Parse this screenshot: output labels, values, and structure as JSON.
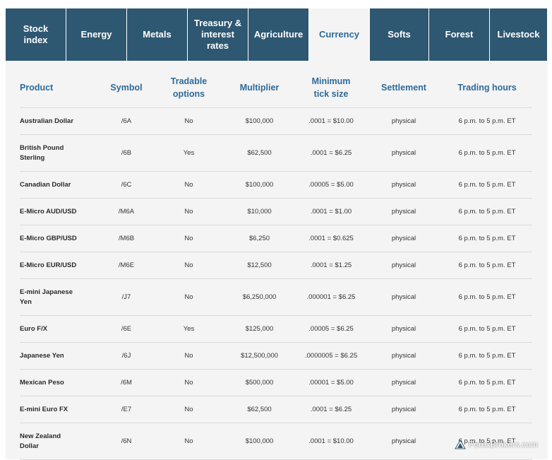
{
  "tabs": [
    {
      "label": "Stock\nindex",
      "active": false
    },
    {
      "label": "Energy",
      "active": false
    },
    {
      "label": "Metals",
      "active": false
    },
    {
      "label": "Treasury &\ninterest\nrates",
      "active": false
    },
    {
      "label": "Agriculture",
      "active": false
    },
    {
      "label": "Currency",
      "active": true
    },
    {
      "label": "Softs",
      "active": false
    },
    {
      "label": "Forest",
      "active": false
    },
    {
      "label": "Livestock",
      "active": false
    }
  ],
  "table": {
    "headers": [
      "Product",
      "Symbol",
      "Tradable\noptions",
      "Multiplier",
      "Minimum\ntick size",
      "Settlement",
      "Trading hours"
    ],
    "rows": [
      [
        "Australian Dollar",
        "/6A",
        "No",
        "$100,000",
        ".0001 = $10.00",
        "physical",
        "6 p.m. to 5 p.m. ET"
      ],
      [
        "British Pound\nSterling",
        "/6B",
        "Yes",
        "$62,500",
        ".0001 = $6.25",
        "physical",
        "6 p.m. to 5 p.m. ET"
      ],
      [
        "Canadian Dollar",
        "/6C",
        "No",
        "$100,000",
        ".00005 = $5.00",
        "physical",
        "6 p.m. to 5 p.m. ET"
      ],
      [
        "E-Micro AUD/USD",
        "/M6A",
        "No",
        "$10,000",
        ".0001 = $1.00",
        "physical",
        "6 p.m. to 5 p.m. ET"
      ],
      [
        "E-Micro GBP/USD",
        "/M6B",
        "No",
        "$6,250",
        ".0001 = $0.625",
        "physical",
        "6 p.m. to 5 p.m. ET"
      ],
      [
        "E-Micro EUR/USD",
        "/M6E",
        "No",
        "$12,500",
        ".0001 = $1.25",
        "physical",
        "6 p.m. to 5 p.m. ET"
      ],
      [
        "E-mini Japanese\nYen",
        "/J7",
        "No",
        "$6,250,000",
        ".000001 = $6.25",
        "physical",
        "6 p.m. to 5 p.m. ET"
      ],
      [
        "Euro F/X",
        "/6E",
        "Yes",
        "$125,000",
        ".00005 = $6.25",
        "physical",
        "6 p.m. to 5 p.m. ET"
      ],
      [
        "Japanese Yen",
        "/6J",
        "No",
        "$12,500,000",
        ".0000005 = $6.25",
        "physical",
        "6 p.m. to 5 p.m. ET"
      ],
      [
        "Mexican Peso",
        "/6M",
        "No",
        "$500,000",
        ".00001 = $5.00",
        "physical",
        "6 p.m. to 5 p.m. ET"
      ],
      [
        "E-mini Euro FX",
        "/E7",
        "No",
        "$62,500",
        ".0001 = $6.25",
        "physical",
        "6 p.m. to 5 p.m. ET"
      ],
      [
        "New Zealand\nDollar",
        "/6N",
        "No",
        "$100,000",
        ".0001 = $10.00",
        "physical",
        "6 p.m. to 5 p.m. ET"
      ]
    ]
  },
  "watermark": {
    "text": "ForexBrokers.com",
    "icon": "forexbrokers-logo-icon"
  },
  "colors": {
    "tab_bg": "#2e5771",
    "header_text": "#2d6a9a",
    "panel_bg": "#f4f4f4"
  }
}
